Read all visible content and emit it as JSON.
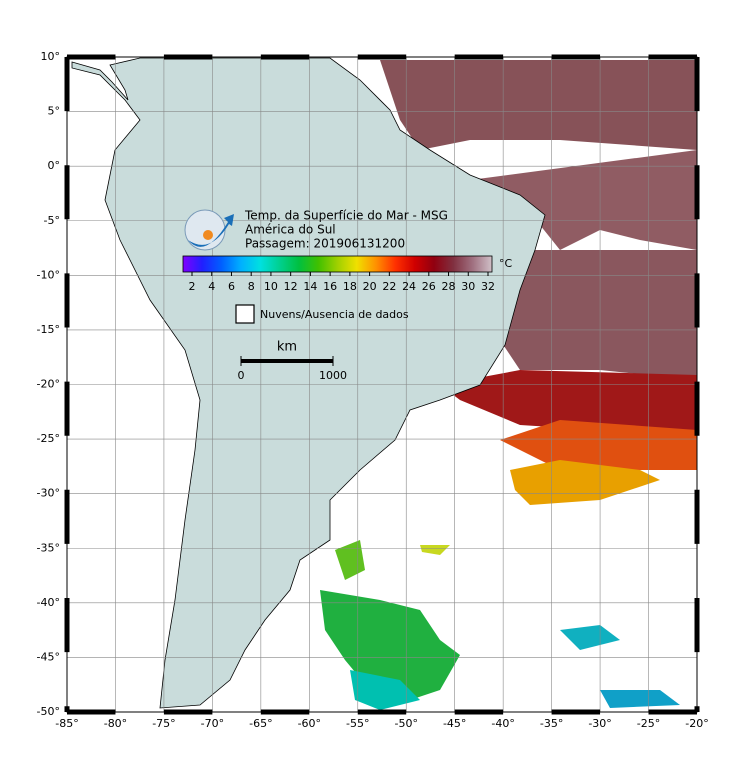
{
  "map": {
    "title": [
      "Temp. da Superfície do Mar - MSG",
      "América do Sul",
      "Passagem: 201906131200"
    ],
    "colorbar": {
      "unit": "°C",
      "ticks": [
        2,
        4,
        6,
        8,
        10,
        12,
        14,
        16,
        18,
        20,
        22,
        24,
        26,
        28,
        30,
        32
      ],
      "colors": [
        "#8000ff",
        "#2020ff",
        "#0060ff",
        "#00b0ff",
        "#00e0e0",
        "#00d090",
        "#00c040",
        "#40c000",
        "#a0d000",
        "#f0e000",
        "#ff9000",
        "#ff3000",
        "#d00000",
        "#900010",
        "#803040",
        "#a07080",
        "#d0c0c8"
      ]
    },
    "legend": "Nuvens/Ausencia de dados",
    "scale": {
      "label": "km",
      "ticks": [
        0,
        1000
      ]
    },
    "axes": {
      "x_ticks": [
        {
          "value": -85,
          "label": "-85°"
        },
        {
          "value": -80,
          "label": "-80°"
        },
        {
          "value": -75,
          "label": "-75°"
        },
        {
          "value": -70,
          "label": "-70°"
        },
        {
          "value": -65,
          "label": "-65°"
        },
        {
          "value": -60,
          "label": "-60°"
        },
        {
          "value": -55,
          "label": "-55°"
        },
        {
          "value": -50,
          "label": "-50°"
        },
        {
          "value": -45,
          "label": "-45°"
        },
        {
          "value": -40,
          "label": "-40°"
        },
        {
          "value": -35,
          "label": "-35°"
        },
        {
          "value": -30,
          "label": "-30°"
        },
        {
          "value": -25,
          "label": "-25°"
        },
        {
          "value": -20,
          "label": "-20°"
        }
      ],
      "y_ticks": [
        {
          "value": 10,
          "label": "10°"
        },
        {
          "value": 5,
          "label": "5°"
        },
        {
          "value": 0,
          "label": "0°"
        },
        {
          "value": -5,
          "label": "-5°"
        },
        {
          "value": -10,
          "label": "-10°"
        },
        {
          "value": -15,
          "label": "-15°"
        },
        {
          "value": -20,
          "label": "-20°"
        },
        {
          "value": -25,
          "label": "-25°"
        },
        {
          "value": -30,
          "label": "-30°"
        },
        {
          "value": -35,
          "label": "-35°"
        },
        {
          "value": -40,
          "label": "-40°"
        },
        {
          "value": -45,
          "label": "-45°"
        },
        {
          "value": -50,
          "label": "-50°"
        }
      ]
    }
  }
}
